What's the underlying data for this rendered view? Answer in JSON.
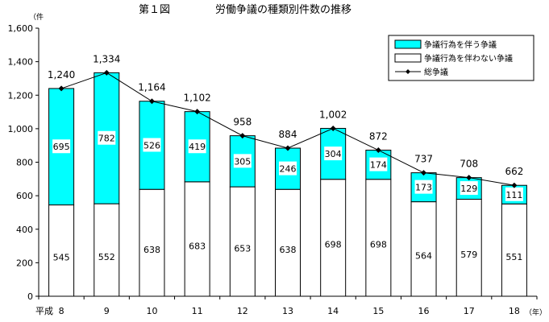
{
  "chart_data": {
    "type": "bar",
    "title_left": "第１図",
    "title_right": "労働争議の種類別件数の推移",
    "y_unit": "（件",
    "x_unit": "（年）",
    "x_prefix": "平成",
    "categories": [
      "8",
      "9",
      "10",
      "11",
      "12",
      "13",
      "14",
      "15",
      "16",
      "17",
      "18"
    ],
    "ylim": [
      0,
      1600
    ],
    "y_ticks": [
      "0",
      "200",
      "400",
      "600",
      "800",
      "1,000",
      "1,200",
      "1,400",
      "1,600"
    ],
    "series": [
      {
        "name": "争議行為を伴わない争議",
        "color": "#ffffff",
        "values": [
          545,
          552,
          638,
          683,
          653,
          638,
          698,
          698,
          564,
          579,
          551
        ]
      },
      {
        "name": "争議行為を伴う争議",
        "color": "#00ffff",
        "values": [
          695,
          782,
          526,
          419,
          305,
          246,
          304,
          174,
          173,
          129,
          111
        ]
      },
      {
        "name": "総争議",
        "type": "line",
        "values": [
          1240,
          1334,
          1164,
          1102,
          958,
          884,
          1002,
          872,
          737,
          708,
          662
        ],
        "labels": [
          "1,240",
          "1,334",
          "1,164",
          "1,102",
          "958",
          "884",
          "1,002",
          "872",
          "737",
          "708",
          "662"
        ]
      }
    ],
    "legend_position": "top-right",
    "grid": false
  }
}
